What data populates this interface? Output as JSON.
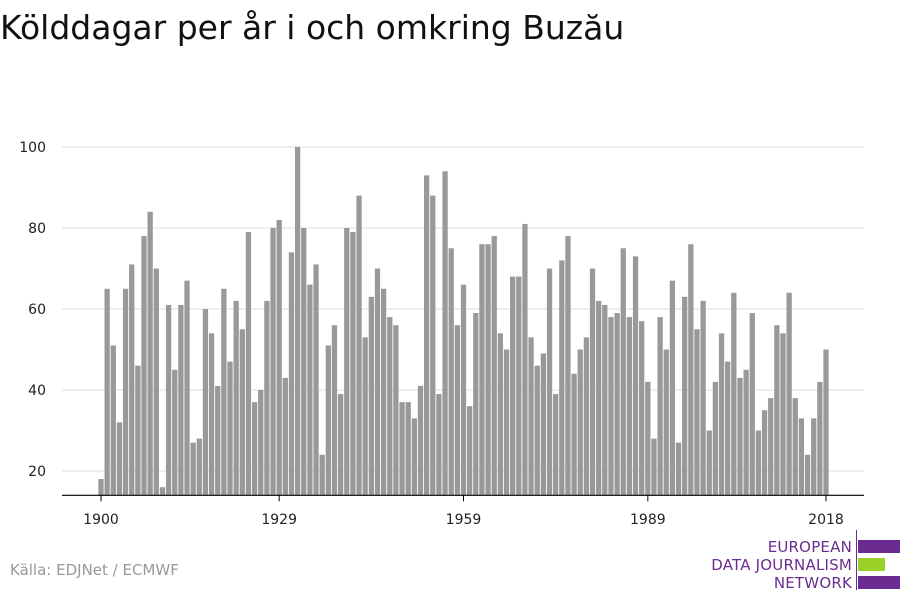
{
  "title": "Kölddagar per år i och omkring Buzău",
  "source": "Källa: EDJNet / ECMWF",
  "logo": {
    "lines": [
      "EUROPEAN",
      "DATA JOURNALISM",
      "NETWORK"
    ],
    "colors": {
      "purple": "#6b2c91",
      "green": "#9bd22a"
    }
  },
  "colors": {
    "bar": "#999999",
    "grid": "#dddddd",
    "axis": "#000000"
  },
  "chart_data": {
    "type": "bar",
    "title": "Kölddagar per år i och omkring Buzău",
    "xlabel": "",
    "ylabel": "",
    "ylim": [
      14,
      100
    ],
    "xlim": [
      1900,
      2018
    ],
    "xticks": [
      1900,
      1929,
      1959,
      1989,
      2018
    ],
    "yticks": [
      20,
      40,
      60,
      80,
      100
    ],
    "grid": true,
    "x": [
      1900,
      1901,
      1902,
      1903,
      1904,
      1905,
      1906,
      1907,
      1908,
      1909,
      1910,
      1911,
      1912,
      1913,
      1914,
      1915,
      1916,
      1917,
      1918,
      1919,
      1920,
      1921,
      1922,
      1923,
      1924,
      1925,
      1926,
      1927,
      1928,
      1929,
      1930,
      1931,
      1932,
      1933,
      1934,
      1935,
      1936,
      1937,
      1938,
      1939,
      1940,
      1941,
      1942,
      1943,
      1944,
      1945,
      1946,
      1947,
      1948,
      1949,
      1950,
      1951,
      1952,
      1953,
      1954,
      1955,
      1956,
      1957,
      1958,
      1959,
      1960,
      1961,
      1962,
      1963,
      1964,
      1965,
      1966,
      1967,
      1968,
      1969,
      1970,
      1971,
      1972,
      1973,
      1974,
      1975,
      1976,
      1977,
      1978,
      1979,
      1980,
      1981,
      1982,
      1983,
      1984,
      1985,
      1986,
      1987,
      1988,
      1989,
      1990,
      1991,
      1992,
      1993,
      1994,
      1995,
      1996,
      1997,
      1998,
      1999,
      2000,
      2001,
      2002,
      2003,
      2004,
      2005,
      2006,
      2007,
      2008,
      2009,
      2010,
      2011,
      2012,
      2013,
      2014,
      2015,
      2016,
      2017,
      2018
    ],
    "values": [
      18,
      65,
      51,
      32,
      65,
      71,
      46,
      78,
      84,
      70,
      16,
      61,
      45,
      61,
      67,
      27,
      28,
      60,
      54,
      41,
      65,
      47,
      62,
      55,
      79,
      37,
      40,
      62,
      80,
      82,
      43,
      74,
      100,
      80,
      66,
      71,
      24,
      51,
      56,
      39,
      80,
      79,
      88,
      53,
      63,
      70,
      65,
      58,
      56,
      37,
      37,
      33,
      41,
      93,
      88,
      39,
      94,
      75,
      56,
      66,
      36,
      59,
      76,
      76,
      78,
      54,
      50,
      68,
      68,
      81,
      53,
      46,
      49,
      70,
      39,
      72,
      78,
      44,
      50,
      53,
      70,
      62,
      61,
      58,
      59,
      75,
      58,
      73,
      57,
      42,
      28,
      58,
      50,
      67,
      27,
      63,
      76,
      55,
      62,
      30,
      42,
      54,
      47,
      64,
      43,
      45,
      59,
      30,
      35,
      38,
      56,
      54,
      64,
      38,
      33,
      24,
      33,
      42,
      50
    ]
  }
}
